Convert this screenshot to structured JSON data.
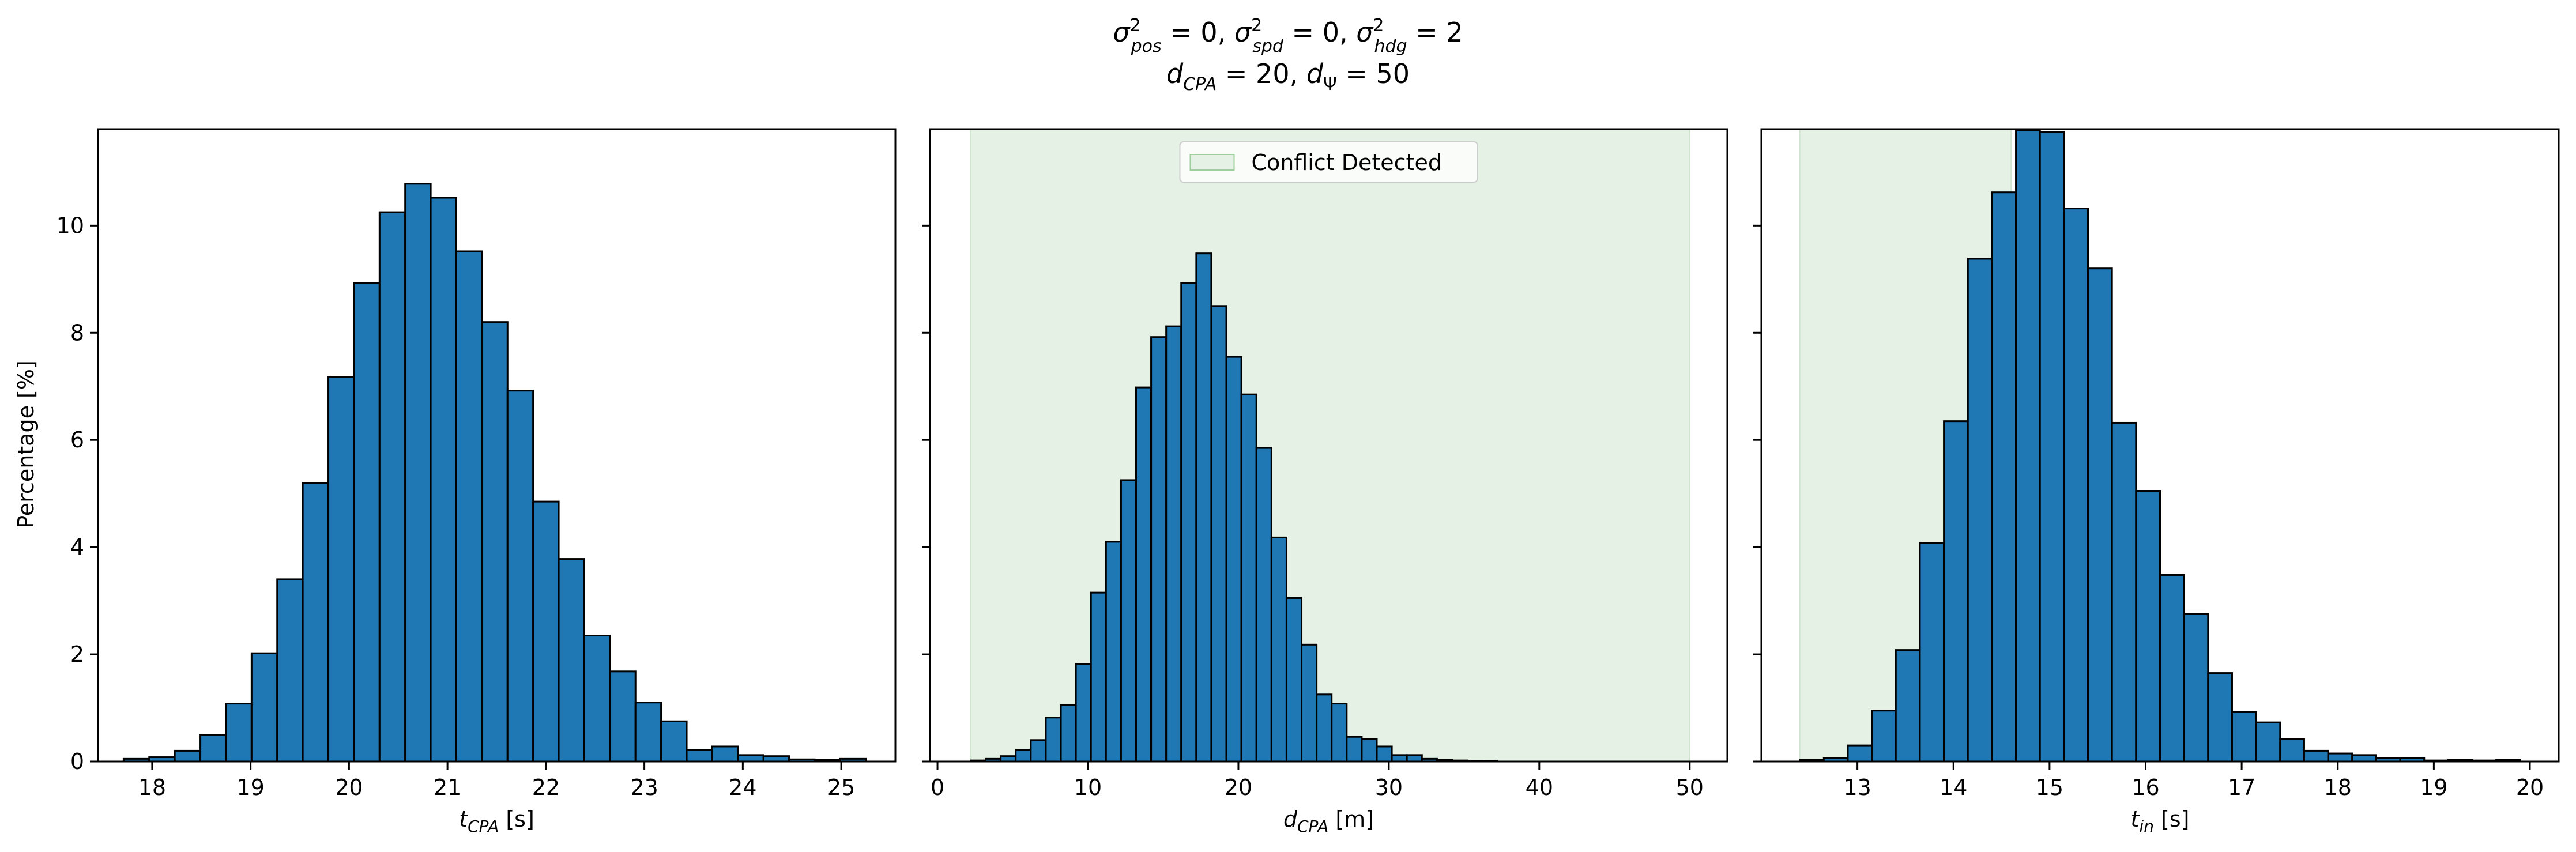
{
  "figure": {
    "title_line1": "σ²pos = 0, σ²spd = 0, σ²hdg = 2",
    "title_line2": "dCPA = 20, dΨ = 50"
  },
  "colors": {
    "bar_fill": "#1f77b4",
    "bar_edge": "#000000",
    "shade": "#cfe5cf"
  },
  "chart_data": [
    {
      "type": "bar",
      "xlabel": "tCPA [s]",
      "ylabel": "Percentage [%]",
      "xlim": [
        17.45,
        25.55
      ],
      "ylim": [
        0,
        11.8
      ],
      "xticks": [
        "18",
        "19",
        "20",
        "21",
        "22",
        "23",
        "24",
        "25"
      ],
      "xtick_values": [
        18,
        19,
        20,
        21,
        22,
        23,
        24,
        25
      ],
      "yticks": [
        "0",
        "2",
        "4",
        "6",
        "8",
        "10"
      ],
      "ytick_values": [
        0,
        2,
        4,
        6,
        8,
        10
      ],
      "grid": false,
      "bin_edges": [
        17.71,
        17.97,
        18.23,
        18.49,
        18.75,
        19.01,
        19.27,
        19.53,
        19.79,
        20.05,
        20.31,
        20.57,
        20.83,
        21.09,
        21.35,
        21.61,
        21.87,
        22.13,
        22.39,
        22.65,
        22.91,
        23.17,
        23.43,
        23.69,
        23.95,
        24.21,
        24.47,
        24.73,
        24.99,
        25.25
      ],
      "values": [
        0.05,
        0.08,
        0.2,
        0.5,
        1.08,
        2.02,
        3.4,
        5.2,
        7.18,
        8.93,
        10.25,
        10.78,
        10.52,
        9.52,
        8.2,
        6.92,
        4.85,
        3.78,
        2.35,
        1.68,
        1.1,
        0.75,
        0.22,
        0.28,
        0.12,
        0.1,
        0.04,
        0.03,
        0.05
      ]
    },
    {
      "type": "bar",
      "xlabel": "dCPA [m]",
      "xlim": [
        -0.5,
        52.5
      ],
      "ylim": [
        0,
        11.8
      ],
      "xticks": [
        "0",
        "10",
        "20",
        "30",
        "40",
        "50"
      ],
      "xtick_values": [
        0,
        10,
        20,
        30,
        40,
        50
      ],
      "grid": false,
      "shaded_region": [
        2.2,
        50
      ],
      "legend": {
        "label": "Conflict Detected",
        "placement": "upper center"
      },
      "bin_edges": [
        2.2,
        3.2,
        4.2,
        5.2,
        6.2,
        7.2,
        8.2,
        9.2,
        10.2,
        11.2,
        12.2,
        13.2,
        14.2,
        15.2,
        16.2,
        17.2,
        18.2,
        19.2,
        20.2,
        21.2,
        22.2,
        23.2,
        24.2,
        25.2,
        26.2,
        27.2,
        28.2,
        29.2,
        30.2,
        31.2,
        32.2,
        33.2,
        34.2,
        35.2,
        36.2,
        37.2
      ],
      "values": [
        0.02,
        0.05,
        0.1,
        0.22,
        0.4,
        0.82,
        1.05,
        1.82,
        3.15,
        4.1,
        5.25,
        6.98,
        7.92,
        8.12,
        8.93,
        9.48,
        8.5,
        7.55,
        6.85,
        5.85,
        4.18,
        3.05,
        2.18,
        1.25,
        1.08,
        0.46,
        0.42,
        0.28,
        0.12,
        0.12,
        0.05,
        0.03,
        0.02,
        0.01,
        0.01
      ]
    },
    {
      "type": "bar",
      "xlabel": "tin [s]",
      "xlim": [
        12.0,
        20.3
      ],
      "ylim": [
        0,
        11.8
      ],
      "xticks": [
        "13",
        "14",
        "15",
        "16",
        "17",
        "18",
        "19",
        "20"
      ],
      "xtick_values": [
        13,
        14,
        15,
        16,
        17,
        18,
        19,
        20
      ],
      "grid": false,
      "shaded_region": [
        12.4,
        14.6
      ],
      "bin_edges": [
        12.4,
        12.65,
        12.9,
        13.15,
        13.4,
        13.65,
        13.9,
        14.15,
        14.4,
        14.65,
        14.9,
        15.15,
        15.4,
        15.65,
        15.9,
        16.15,
        16.4,
        16.65,
        16.9,
        17.15,
        17.4,
        17.65,
        17.9,
        18.15,
        18.4,
        18.65,
        18.9,
        19.15,
        19.4,
        19.65,
        19.9
      ],
      "values": [
        0.03,
        0.06,
        0.3,
        0.95,
        2.08,
        4.08,
        6.35,
        9.38,
        10.62,
        11.78,
        11.75,
        10.32,
        9.2,
        6.32,
        5.05,
        3.48,
        2.75,
        1.65,
        0.92,
        0.73,
        0.42,
        0.2,
        0.15,
        0.12,
        0.06,
        0.07,
        0.02,
        0.03,
        0.02,
        0.03
      ]
    }
  ]
}
